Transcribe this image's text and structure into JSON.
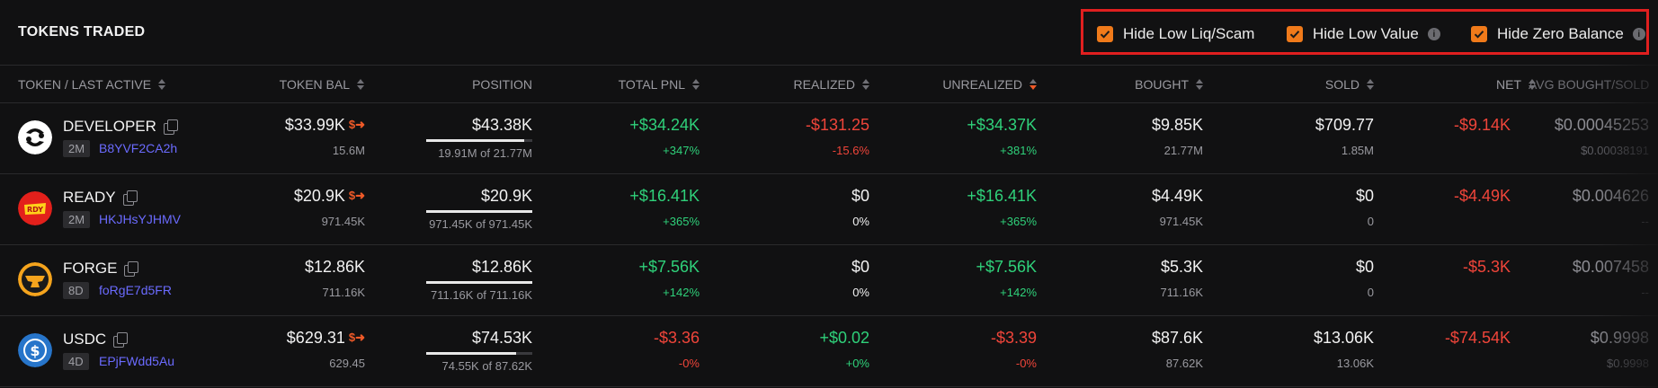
{
  "header": {
    "title": "TOKENS TRADED"
  },
  "filters": [
    {
      "label": "Hide Low Liq/Scam",
      "checked": true,
      "info": false
    },
    {
      "label": "Hide Low Value",
      "checked": true,
      "info": true
    },
    {
      "label": "Hide Zero Balance",
      "checked": true,
      "info": true
    }
  ],
  "columns": {
    "token": "TOKEN / LAST ACTIVE",
    "token_bal": "TOKEN BAL",
    "position": "POSITION",
    "total_pnl": "TOTAL PNL",
    "realized": "REALIZED",
    "unrealized": "UNREALIZED",
    "bought": "BOUGHT",
    "sold": "SOLD",
    "net": "NET",
    "avg": "AVG BOUGHT/SOLD"
  },
  "rows": [
    {
      "name": "DEVELOPER",
      "age": "2M",
      "address": "B8YVF2CA2h",
      "icon": "developer-token-icon",
      "bal_usd": "$33.99K",
      "bal_swap": true,
      "bal_amount": "15.6M",
      "pos_usd": "$43.38K",
      "pos_sub": "19.91M of 21.77M",
      "pos_fill": 0.915,
      "pnl": "+$34.24K",
      "pnl_pct": "+347%",
      "realized": "-$131.25",
      "realized_pct": "-15.6%",
      "unrealized": "+$34.37K",
      "unrealized_pct": "+381%",
      "bought": "$9.85K",
      "bought_sub": "21.77M",
      "sold": "$709.77",
      "sold_sub": "1.85M",
      "net": "-$9.14K",
      "avg": "$0.00045253",
      "avg_sub": "$0.00038191"
    },
    {
      "name": "READY",
      "age": "2M",
      "address": "HKJHsYJHMV",
      "icon": "ready-token-icon",
      "bal_usd": "$20.9K",
      "bal_swap": true,
      "bal_amount": "971.45K",
      "pos_usd": "$20.9K",
      "pos_sub": "971.45K of 971.45K",
      "pos_fill": 1.0,
      "pnl": "+$16.41K",
      "pnl_pct": "+365%",
      "realized": "$0",
      "realized_pct": "0%",
      "unrealized": "+$16.41K",
      "unrealized_pct": "+365%",
      "bought": "$4.49K",
      "bought_sub": "971.45K",
      "sold": "$0",
      "sold_sub": "0",
      "net": "-$4.49K",
      "avg": "$0.004626",
      "avg_sub": "--"
    },
    {
      "name": "FORGE",
      "age": "8D",
      "address": "foRgE7d5FR",
      "icon": "forge-token-icon",
      "bal_usd": "$12.86K",
      "bal_swap": false,
      "bal_amount": "711.16K",
      "pos_usd": "$12.86K",
      "pos_sub": "711.16K of 711.16K",
      "pos_fill": 1.0,
      "pnl": "+$7.56K",
      "pnl_pct": "+142%",
      "realized": "$0",
      "realized_pct": "0%",
      "unrealized": "+$7.56K",
      "unrealized_pct": "+142%",
      "bought": "$5.3K",
      "bought_sub": "711.16K",
      "sold": "$0",
      "sold_sub": "0",
      "net": "-$5.3K",
      "avg": "$0.007458",
      "avg_sub": "--"
    },
    {
      "name": "USDC",
      "age": "4D",
      "address": "EPjFWdd5Au",
      "icon": "usdc-token-icon",
      "bal_usd": "$629.31",
      "bal_swap": true,
      "bal_amount": "629.45",
      "pos_usd": "$74.53K",
      "pos_sub": "74.55K of 87.62K",
      "pos_fill": 0.85,
      "pnl": "-$3.36",
      "pnl_pct": "-0%",
      "realized": "+$0.02",
      "realized_pct": "+0%",
      "unrealized": "-$3.39",
      "unrealized_pct": "-0%",
      "bought": "$87.6K",
      "bought_sub": "87.62K",
      "sold": "$13.06K",
      "sold_sub": "13.06K",
      "net": "-$74.54K",
      "avg": "$0.9998",
      "avg_sub": "$0.9998"
    }
  ],
  "colors": {
    "accent": "#f07a1a",
    "highlight_border": "#e01f1f",
    "positive": "#2fd17a",
    "negative": "#f0453a",
    "link": "#6b6bff"
  }
}
